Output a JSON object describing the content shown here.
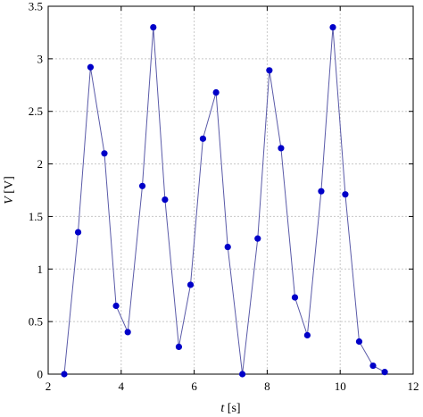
{
  "chart_data": {
    "type": "line",
    "title": "",
    "xlabel_var": "t",
    "xlabel_unit": " [s]",
    "ylabel_var": "V",
    "ylabel_unit": " [V]",
    "xlim": [
      2,
      12
    ],
    "ylim": [
      0,
      3.5
    ],
    "xticks": [
      2,
      4,
      6,
      8,
      10,
      12
    ],
    "yticks": [
      0,
      0.5,
      1,
      1.5,
      2,
      2.5,
      3,
      3.5
    ],
    "xtick_labels": [
      "2",
      "4",
      "6",
      "8",
      "10",
      "12"
    ],
    "ytick_labels": [
      "0",
      "0.5",
      "1",
      "1.5",
      "2",
      "2.5",
      "3",
      "3.5"
    ],
    "grid": true,
    "marker_color": "#0000c8",
    "line_color": "#5a5aa8",
    "series": [
      {
        "x": [
          2.44,
          2.82,
          3.16,
          3.54,
          3.86,
          4.18,
          4.58,
          4.88,
          5.2,
          5.58,
          5.9,
          6.24,
          6.6,
          6.92,
          7.32,
          7.74,
          8.06,
          8.38,
          8.76,
          9.1,
          9.48,
          9.8,
          10.14,
          10.52,
          10.9,
          11.22
        ],
        "y": [
          0.0,
          1.35,
          2.92,
          2.1,
          0.65,
          0.4,
          1.79,
          3.3,
          1.66,
          0.26,
          0.85,
          2.24,
          2.68,
          1.21,
          0.0,
          1.29,
          2.89,
          2.15,
          0.73,
          0.37,
          1.74,
          3.3,
          1.71,
          0.31,
          0.08,
          0.02
        ]
      }
    ]
  }
}
